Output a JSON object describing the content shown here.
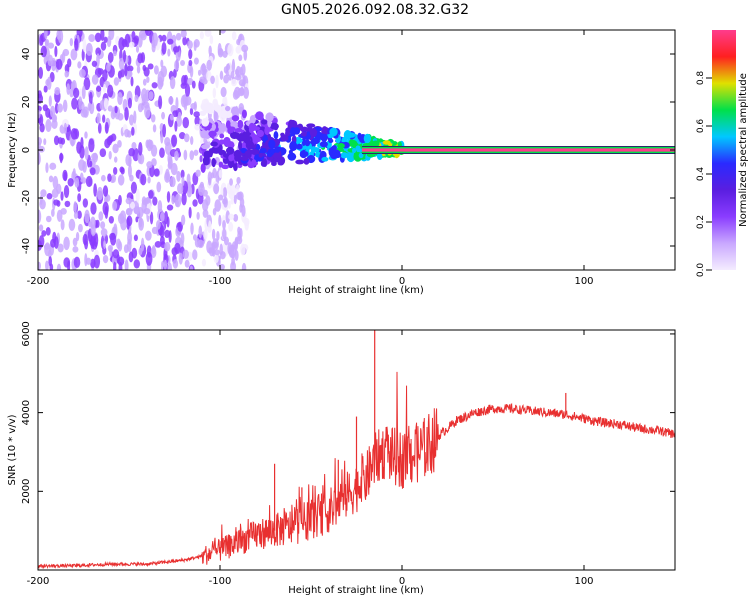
{
  "figure_title": "GN05.2026.092.08.32.G32",
  "colors": {
    "signal": "#e83030",
    "spectral_ramp": [
      "#f4ecff",
      "#c9a8ff",
      "#8a3cff",
      "#5a1ee0",
      "#2a2aff",
      "#00c8ff",
      "#00e04a",
      "#e0e000",
      "#ff2020",
      "#ff3c8c"
    ],
    "axis": "#000000"
  },
  "chart_data": [
    {
      "type": "heatmap",
      "name": "spectrogram",
      "title": "",
      "xlabel": "Height of straight line (km)",
      "ylabel": "Frequency (Hz)",
      "xlim": [
        -200,
        150
      ],
      "ylim": [
        -50,
        50
      ],
      "x_ticks": [
        -200,
        -100,
        0,
        100
      ],
      "y_ticks": [
        -40,
        -20,
        0,
        20,
        40
      ],
      "colorbar": {
        "label": "Normalized spectral amplitude",
        "range": [
          0,
          1
        ],
        "ticks": [
          "0.0",
          "0.2",
          "0.4",
          "0.6",
          "0.8"
        ]
      },
      "description_values": {
        "noise_region_x": [
          -200,
          -100
        ],
        "ridge_x": [
          -110,
          0
        ],
        "ridge_freq_hz": 0,
        "line_x": [
          0,
          150
        ],
        "line_amplitude": 0.95
      }
    },
    {
      "type": "line",
      "name": "snr",
      "title": "",
      "xlabel": "Height of straight line (km)",
      "ylabel": "SNR (10 * v/v)",
      "xlim": [
        -200,
        150
      ],
      "ylim": [
        0,
        6100
      ],
      "x_ticks": [
        -200,
        -100,
        0,
        100
      ],
      "y_ticks": [
        2000,
        4000,
        6000
      ],
      "series": [
        {
          "name": "SNR",
          "x": [
            -200,
            -180,
            -160,
            -140,
            -120,
            -110,
            -100,
            -90,
            -80,
            -70,
            -60,
            -50,
            -40,
            -30,
            -20,
            -15,
            -10,
            0,
            10,
            20,
            30,
            40,
            50,
            60,
            70,
            80,
            90,
            100,
            110,
            120,
            130,
            140,
            150
          ],
          "values": [
            100,
            110,
            150,
            150,
            250,
            350,
            500,
            700,
            900,
            1000,
            1100,
            1300,
            1500,
            1900,
            2300,
            2800,
            3000,
            2800,
            3000,
            3400,
            3800,
            4000,
            4100,
            4100,
            4050,
            4000,
            3950,
            3850,
            3750,
            3700,
            3600,
            3550,
            3450
          ]
        }
      ],
      "spikes": [
        {
          "x": -70,
          "value": 2700
        },
        {
          "x": -55,
          "value": 2100
        },
        {
          "x": -35,
          "value": 2800
        },
        {
          "x": -25,
          "value": 3900
        },
        {
          "x": -15,
          "value": 6100
        },
        {
          "x": 90,
          "value": 4500
        }
      ]
    }
  ]
}
